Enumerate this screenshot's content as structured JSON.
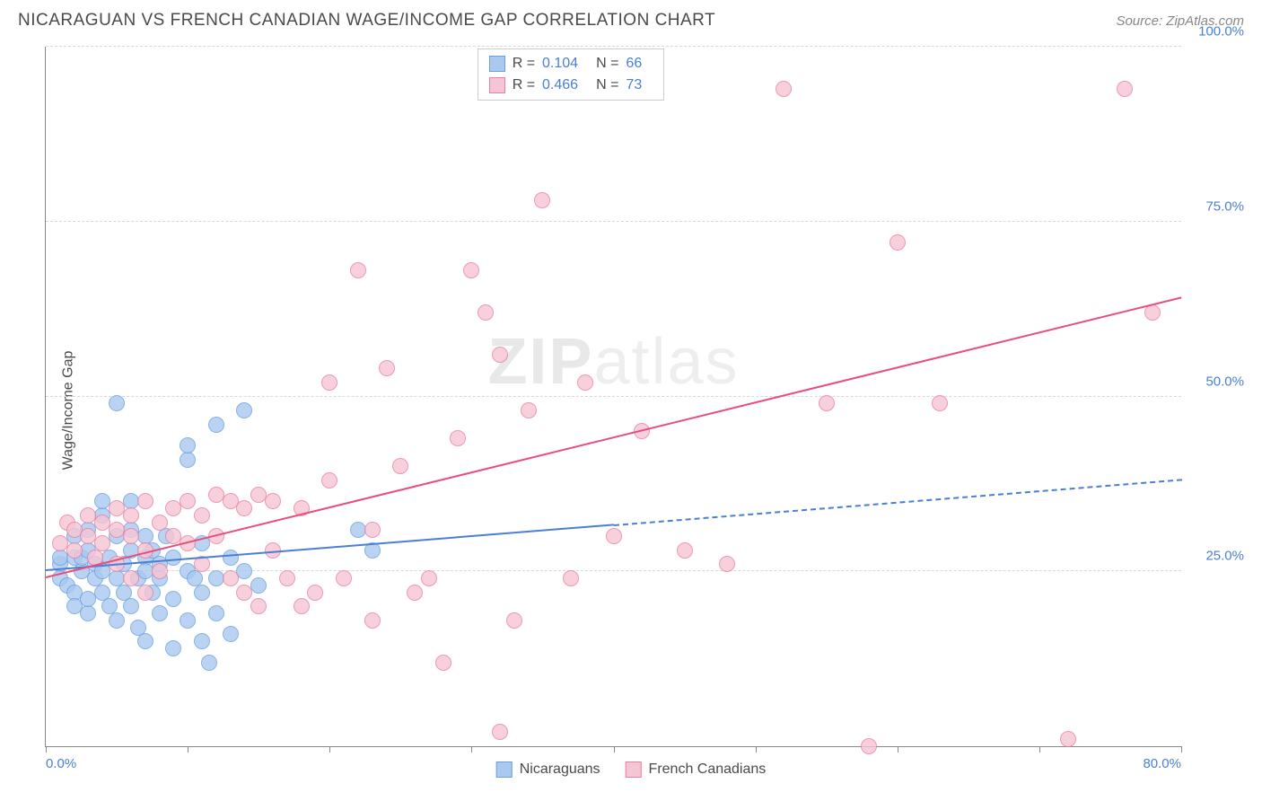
{
  "header": {
    "title": "NICARAGUAN VS FRENCH CANADIAN WAGE/INCOME GAP CORRELATION CHART",
    "source": "Source: ZipAtlas.com"
  },
  "chart": {
    "type": "scatter",
    "ylabel": "Wage/Income Gap",
    "xlim": [
      0,
      80
    ],
    "ylim": [
      0,
      100
    ],
    "background_color": "#ffffff",
    "grid_color": "#d8d8d8",
    "axis_color": "#888888",
    "tick_label_color": "#4a7fd6",
    "tick_fontsize": 15,
    "ylabel_fontsize": 16,
    "yticks": [
      25,
      50,
      75,
      100
    ],
    "ytick_labels": [
      "25.0%",
      "50.0%",
      "75.0%",
      "100.0%"
    ],
    "xticks": [
      0,
      10,
      20,
      30,
      40,
      50,
      60,
      70,
      80
    ],
    "xtick_labels_shown": {
      "0": "0.0%",
      "80": "80.0%"
    },
    "marker_radius": 9,
    "marker_fill_opacity": 0.35,
    "marker_stroke_width": 1.5,
    "watermark": {
      "text_bold": "ZIP",
      "text_thin": "atlas",
      "fontsize": 72,
      "color": "#e8e8e8"
    },
    "series": [
      {
        "name": "Nicaraguans",
        "color_fill": "#a9c9ef",
        "color_stroke": "#6aa0e0",
        "r_label": "R =",
        "r_value": "0.104",
        "n_label": "N =",
        "n_value": "66",
        "regression": {
          "x1": 0,
          "y1": 25,
          "x2": 80,
          "y2": 38,
          "solid_until_x": 40,
          "color": "#4a7fd6",
          "width": 2
        },
        "points": [
          [
            1,
            26
          ],
          [
            1,
            27
          ],
          [
            1,
            24
          ],
          [
            1.5,
            23
          ],
          [
            2,
            27
          ],
          [
            2,
            30
          ],
          [
            2,
            22
          ],
          [
            2,
            20
          ],
          [
            2.5,
            25
          ],
          [
            2.5,
            27
          ],
          [
            3,
            28
          ],
          [
            3,
            31
          ],
          [
            3,
            19
          ],
          [
            3,
            21
          ],
          [
            3.5,
            26
          ],
          [
            3.5,
            24
          ],
          [
            4,
            33
          ],
          [
            4,
            35
          ],
          [
            4,
            22
          ],
          [
            4,
            25
          ],
          [
            4.5,
            20
          ],
          [
            4.5,
            27
          ],
          [
            5,
            30
          ],
          [
            5,
            24
          ],
          [
            5,
            18
          ],
          [
            5,
            49
          ],
          [
            5.5,
            26
          ],
          [
            5.5,
            22
          ],
          [
            6,
            28
          ],
          [
            6,
            31
          ],
          [
            6,
            35
          ],
          [
            6,
            20
          ],
          [
            6.5,
            24
          ],
          [
            6.5,
            17
          ],
          [
            7,
            27
          ],
          [
            7,
            30
          ],
          [
            7,
            25
          ],
          [
            7,
            15
          ],
          [
            7.5,
            22
          ],
          [
            7.5,
            28
          ],
          [
            8,
            26
          ],
          [
            8,
            19
          ],
          [
            8,
            24
          ],
          [
            8.5,
            30
          ],
          [
            9,
            27
          ],
          [
            9,
            21
          ],
          [
            9,
            14
          ],
          [
            10,
            41
          ],
          [
            10,
            43
          ],
          [
            10,
            25
          ],
          [
            10,
            18
          ],
          [
            10.5,
            24
          ],
          [
            11,
            29
          ],
          [
            11,
            22
          ],
          [
            11,
            15
          ],
          [
            11.5,
            12
          ],
          [
            12,
            46
          ],
          [
            12,
            24
          ],
          [
            12,
            19
          ],
          [
            13,
            27
          ],
          [
            13,
            16
          ],
          [
            14,
            25
          ],
          [
            14,
            48
          ],
          [
            15,
            23
          ],
          [
            22,
            31
          ],
          [
            23,
            28
          ]
        ]
      },
      {
        "name": "French Canadians",
        "color_fill": "#f6c5d3",
        "color_stroke": "#e97fa3",
        "r_label": "R =",
        "r_value": "0.466",
        "n_label": "N =",
        "n_value": "73",
        "regression": {
          "x1": 0,
          "y1": 24,
          "x2": 80,
          "y2": 64,
          "solid_until_x": 80,
          "color": "#e94d7c",
          "width": 2
        },
        "points": [
          [
            1,
            29
          ],
          [
            1.5,
            32
          ],
          [
            2,
            28
          ],
          [
            2,
            31
          ],
          [
            3,
            33
          ],
          [
            3,
            30
          ],
          [
            3.5,
            27
          ],
          [
            4,
            32
          ],
          [
            4,
            29
          ],
          [
            5,
            34
          ],
          [
            5,
            31
          ],
          [
            5,
            26
          ],
          [
            6,
            30
          ],
          [
            6,
            33
          ],
          [
            6,
            24
          ],
          [
            7,
            35
          ],
          [
            7,
            28
          ],
          [
            7,
            22
          ],
          [
            8,
            32
          ],
          [
            8,
            25
          ],
          [
            9,
            34
          ],
          [
            9,
            30
          ],
          [
            10,
            29
          ],
          [
            10,
            35
          ],
          [
            11,
            33
          ],
          [
            11,
            26
          ],
          [
            12,
            36
          ],
          [
            12,
            30
          ],
          [
            13,
            35
          ],
          [
            13,
            24
          ],
          [
            14,
            34
          ],
          [
            14,
            22
          ],
          [
            15,
            36
          ],
          [
            15,
            20
          ],
          [
            16,
            35
          ],
          [
            16,
            28
          ],
          [
            17,
            24
          ],
          [
            18,
            34
          ],
          [
            18,
            20
          ],
          [
            19,
            22
          ],
          [
            20,
            52
          ],
          [
            20,
            38
          ],
          [
            21,
            24
          ],
          [
            22,
            68
          ],
          [
            23,
            31
          ],
          [
            23,
            18
          ],
          [
            24,
            54
          ],
          [
            25,
            40
          ],
          [
            26,
            22
          ],
          [
            27,
            24
          ],
          [
            28,
            12
          ],
          [
            29,
            44
          ],
          [
            30,
            68
          ],
          [
            31,
            62
          ],
          [
            32,
            2
          ],
          [
            32,
            56
          ],
          [
            33,
            18
          ],
          [
            34,
            48
          ],
          [
            35,
            78
          ],
          [
            37,
            24
          ],
          [
            38,
            52
          ],
          [
            40,
            30
          ],
          [
            42,
            45
          ],
          [
            45,
            28
          ],
          [
            48,
            26
          ],
          [
            52,
            94
          ],
          [
            55,
            49
          ],
          [
            58,
            0
          ],
          [
            60,
            72
          ],
          [
            63,
            49
          ],
          [
            72,
            1
          ],
          [
            76,
            94
          ],
          [
            78,
            62
          ]
        ]
      }
    ],
    "legend": {
      "swatch_size": 18,
      "items": [
        {
          "label": "Nicaraguans",
          "fill": "#a9c9ef",
          "stroke": "#6aa0e0"
        },
        {
          "label": "French Canadians",
          "fill": "#f6c5d3",
          "stroke": "#e97fa3"
        }
      ]
    }
  }
}
